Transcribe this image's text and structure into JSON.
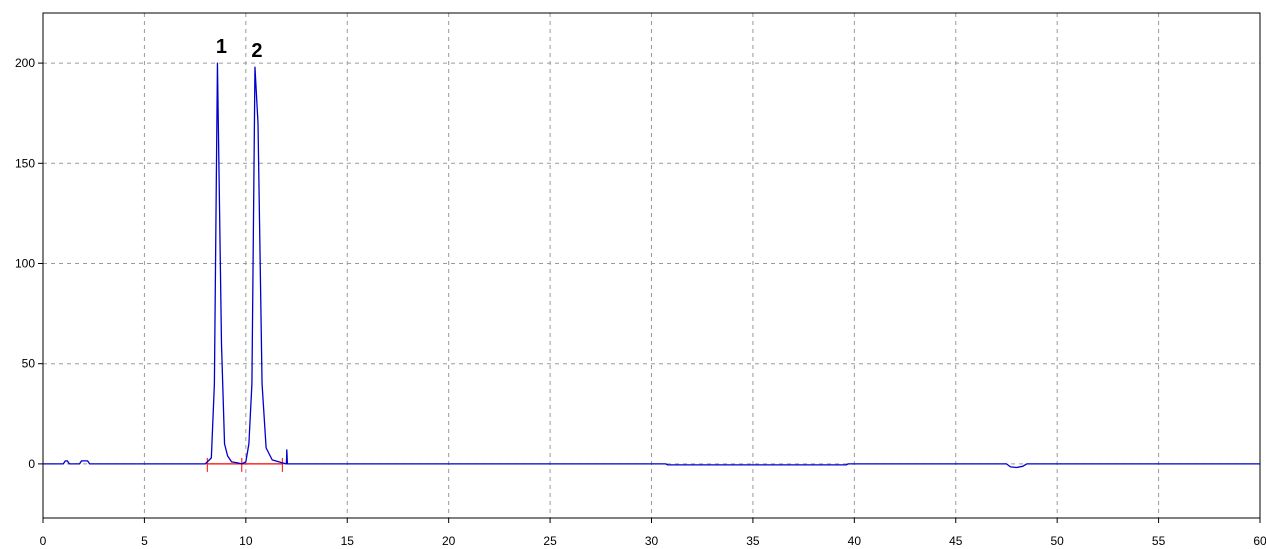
{
  "chart_data": {
    "type": "line",
    "title": "",
    "xlabel": "",
    "ylabel": "",
    "xlim": [
      0,
      60
    ],
    "ylim": [
      -27,
      225
    ],
    "x_ticks": [
      "0",
      "5",
      "10",
      "15",
      "20",
      "25",
      "30",
      "35",
      "40",
      "45",
      "50",
      "55",
      "60"
    ],
    "y_ticks": [
      "0",
      "50",
      "100",
      "150",
      "200"
    ],
    "grid": true,
    "grid_style": "dashed",
    "colors": {
      "trace": "#0000cc",
      "baseline": "#ff0000",
      "grid": "#9a9a9a",
      "axis": "#000000"
    },
    "series": [
      {
        "x": [
          0,
          1.0,
          1.1,
          1.2,
          1.3,
          1.8,
          1.9,
          2.2,
          2.3,
          8.0,
          8.3,
          8.45,
          8.6,
          8.8,
          8.95,
          9.1,
          9.3,
          9.6,
          9.8,
          10.0,
          10.15,
          10.3,
          10.45,
          10.6,
          10.8,
          11.0,
          11.3,
          11.8,
          12.0,
          12.02,
          12.05,
          30.7,
          30.8,
          39.6,
          39.7,
          47.5,
          47.7,
          48.0,
          48.3,
          48.5,
          60
        ],
        "y": [
          0,
          0,
          1.5,
          1.5,
          0,
          0,
          1.5,
          1.5,
          0,
          0,
          3,
          40,
          200,
          60,
          10,
          4,
          1,
          0.5,
          0,
          1,
          10,
          40,
          198,
          170,
          40,
          8,
          2,
          0.5,
          0,
          7,
          0,
          0,
          -0.5,
          -0.5,
          0,
          0,
          -1.5,
          -1.8,
          -1.2,
          0,
          0
        ]
      }
    ],
    "baselines": [
      {
        "x_start": 8.1,
        "x_end": 9.8
      },
      {
        "x_start": 9.8,
        "x_end": 11.8
      }
    ],
    "markers": [
      8.1,
      9.8,
      11.8
    ],
    "annotations": [
      {
        "text": "1",
        "x": 8.8,
        "y": 200
      },
      {
        "text": "2",
        "x": 10.55,
        "y": 198
      }
    ]
  }
}
